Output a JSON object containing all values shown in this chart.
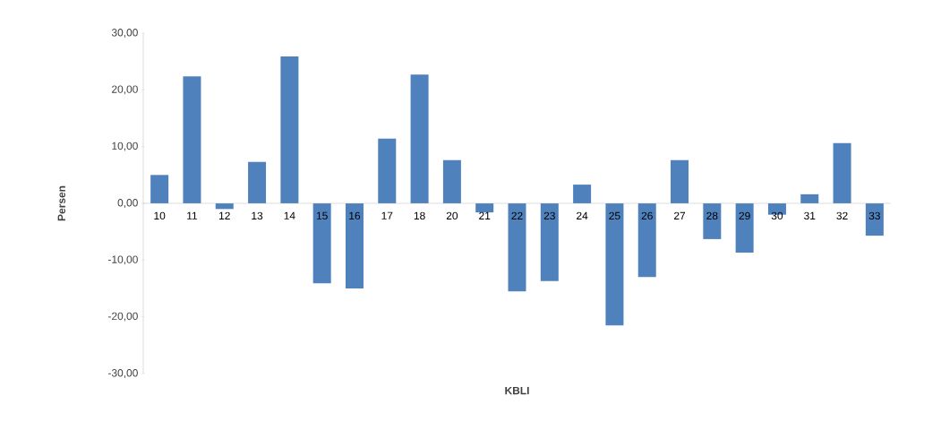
{
  "chart_data": {
    "type": "bar",
    "xlabel": "KBLI",
    "ylabel": "Persen",
    "color": "#4f81bd",
    "categories": [
      "10",
      "11",
      "12",
      "13",
      "14",
      "15",
      "16",
      "17",
      "18",
      "20",
      "21",
      "22",
      "23",
      "24",
      "25",
      "26",
      "27",
      "28",
      "29",
      "30",
      "31",
      "32",
      "33"
    ],
    "values": [
      5,
      22.4,
      -1,
      7.3,
      25.9,
      -14.1,
      -15,
      11.4,
      22.7,
      7.6,
      -1.6,
      -15.5,
      -13.7,
      3.3,
      -21.5,
      -13,
      7.6,
      -6.3,
      -8.7,
      -2,
      1.6,
      10.6,
      -5.7
    ],
    "ylim": [
      -30,
      30
    ],
    "yticks": [
      {
        "value": -30,
        "label": "-30,00"
      },
      {
        "value": -20,
        "label": "-20,00"
      },
      {
        "value": -10,
        "label": "-10,00"
      },
      {
        "value": 0,
        "label": "0,00"
      },
      {
        "value": 10,
        "label": "10,00"
      },
      {
        "value": 20,
        "label": "20,00"
      },
      {
        "value": 30,
        "label": "30,00"
      }
    ]
  }
}
